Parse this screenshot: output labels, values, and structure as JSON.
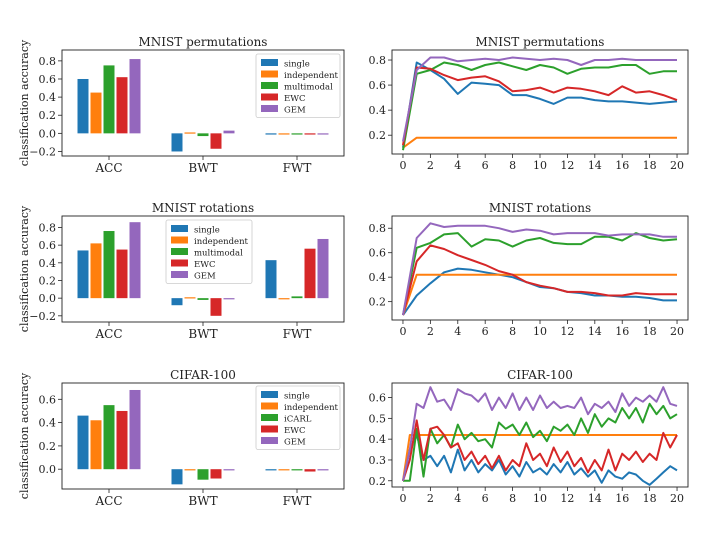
{
  "colors": {
    "single": "#1f77b4",
    "independent": "#ff7f0e",
    "multimodal": "#2ca02c",
    "EWC": "#d62728",
    "GEM": "#9467bd"
  },
  "ylabel_shared": "classification accuracy",
  "chart_data": [
    {
      "type": "bar",
      "title": "MNIST permutations",
      "ylabel": "classification accuracy",
      "categories": [
        "ACC",
        "BWT",
        "FWT"
      ],
      "series": [
        {
          "name": "single",
          "values": [
            0.6,
            -0.2,
            0.0
          ]
        },
        {
          "name": "independent",
          "values": [
            0.45,
            0.01,
            0.0
          ]
        },
        {
          "name": "multimodal",
          "values": [
            0.75,
            -0.03,
            0.0
          ]
        },
        {
          "name": "EWC",
          "values": [
            0.62,
            -0.17,
            0.0
          ]
        },
        {
          "name": "GEM",
          "values": [
            0.82,
            0.03,
            0.0
          ]
        }
      ],
      "ylim": [
        -0.25,
        0.92
      ],
      "yticks": [
        -0.2,
        0.0,
        0.2,
        0.4,
        0.6,
        0.8
      ],
      "ytick_labels": [
        "−0.2",
        "0.0",
        "0.2",
        "0.4",
        "0.6",
        "0.8"
      ],
      "legend": "top-right"
    },
    {
      "type": "line",
      "title": "MNIST permutations",
      "x": [
        0,
        1,
        2,
        3,
        4,
        5,
        6,
        7,
        8,
        9,
        10,
        11,
        12,
        13,
        14,
        15,
        16,
        17,
        18,
        19,
        20
      ],
      "series": [
        {
          "name": "single",
          "values": [
            0.1,
            0.78,
            0.72,
            0.65,
            0.53,
            0.62,
            0.61,
            0.6,
            0.52,
            0.52,
            0.49,
            0.45,
            0.5,
            0.5,
            0.48,
            0.47,
            0.47,
            0.46,
            0.45,
            0.46,
            0.47
          ]
        },
        {
          "name": "independent",
          "values": [
            0.1,
            0.18,
            0.18,
            0.18,
            0.18,
            0.18,
            0.18,
            0.18,
            0.18,
            0.18,
            0.18,
            0.18,
            0.18,
            0.18,
            0.18,
            0.18,
            0.18,
            0.18,
            0.18,
            0.18,
            0.18
          ]
        },
        {
          "name": "multimodal",
          "values": [
            0.08,
            0.69,
            0.72,
            0.78,
            0.76,
            0.72,
            0.76,
            0.78,
            0.75,
            0.72,
            0.76,
            0.74,
            0.69,
            0.73,
            0.74,
            0.74,
            0.76,
            0.76,
            0.69,
            0.71,
            0.71
          ]
        },
        {
          "name": "EWC",
          "values": [
            0.12,
            0.74,
            0.73,
            0.68,
            0.64,
            0.66,
            0.67,
            0.63,
            0.55,
            0.56,
            0.58,
            0.54,
            0.58,
            0.57,
            0.55,
            0.52,
            0.59,
            0.54,
            0.55,
            0.52,
            0.48
          ]
        },
        {
          "name": "GEM",
          "values": [
            0.15,
            0.72,
            0.82,
            0.82,
            0.79,
            0.8,
            0.81,
            0.8,
            0.82,
            0.81,
            0.8,
            0.81,
            0.8,
            0.76,
            0.8,
            0.8,
            0.81,
            0.8,
            0.8,
            0.8,
            0.8
          ]
        }
      ],
      "ylim": [
        0.05,
        0.88
      ],
      "yticks": [
        0.2,
        0.4,
        0.6,
        0.8
      ],
      "ytick_labels": [
        "0.2",
        "0.4",
        "0.6",
        "0.8"
      ],
      "xticks": [
        0,
        2,
        4,
        6,
        8,
        10,
        12,
        14,
        16,
        18,
        20
      ]
    },
    {
      "type": "bar",
      "title": "MNIST rotations",
      "ylabel": "classification accuracy",
      "categories": [
        "ACC",
        "BWT",
        "FWT"
      ],
      "series": [
        {
          "name": "single",
          "values": [
            0.54,
            -0.08,
            0.43
          ]
        },
        {
          "name": "independent",
          "values": [
            0.62,
            0.01,
            0.0
          ]
        },
        {
          "name": "multimodal",
          "values": [
            0.76,
            -0.02,
            0.02
          ]
        },
        {
          "name": "EWC",
          "values": [
            0.55,
            -0.2,
            0.56
          ]
        },
        {
          "name": "GEM",
          "values": [
            0.86,
            0.0,
            0.67
          ]
        }
      ],
      "ylim": [
        -0.27,
        0.93
      ],
      "yticks": [
        -0.2,
        0.0,
        0.2,
        0.4,
        0.6,
        0.8
      ],
      "ytick_labels": [
        "−0.2",
        "0.0",
        "0.2",
        "0.4",
        "0.6",
        "0.8"
      ],
      "legend": "top-center"
    },
    {
      "type": "line",
      "title": "MNIST rotations",
      "x": [
        0,
        1,
        2,
        3,
        4,
        5,
        6,
        7,
        8,
        9,
        10,
        11,
        12,
        13,
        14,
        15,
        16,
        17,
        18,
        19,
        20
      ],
      "series": [
        {
          "name": "single",
          "values": [
            0.09,
            0.25,
            0.35,
            0.44,
            0.47,
            0.46,
            0.44,
            0.42,
            0.4,
            0.36,
            0.32,
            0.31,
            0.28,
            0.27,
            0.25,
            0.25,
            0.24,
            0.24,
            0.23,
            0.21,
            0.21
          ]
        },
        {
          "name": "independent",
          "values": [
            0.09,
            0.42,
            0.42,
            0.42,
            0.42,
            0.42,
            0.42,
            0.42,
            0.42,
            0.42,
            0.42,
            0.42,
            0.42,
            0.42,
            0.42,
            0.42,
            0.42,
            0.42,
            0.42,
            0.42,
            0.42
          ]
        },
        {
          "name": "multimodal",
          "values": [
            0.09,
            0.64,
            0.68,
            0.75,
            0.76,
            0.65,
            0.71,
            0.7,
            0.65,
            0.7,
            0.72,
            0.68,
            0.67,
            0.67,
            0.73,
            0.73,
            0.7,
            0.76,
            0.72,
            0.7,
            0.71
          ]
        },
        {
          "name": "EWC",
          "values": [
            0.09,
            0.53,
            0.66,
            0.63,
            0.58,
            0.54,
            0.5,
            0.45,
            0.42,
            0.36,
            0.33,
            0.31,
            0.28,
            0.28,
            0.27,
            0.25,
            0.25,
            0.27,
            0.26,
            0.26,
            0.26
          ]
        },
        {
          "name": "GEM",
          "values": [
            0.09,
            0.72,
            0.84,
            0.81,
            0.82,
            0.82,
            0.82,
            0.8,
            0.77,
            0.79,
            0.78,
            0.75,
            0.76,
            0.76,
            0.76,
            0.74,
            0.75,
            0.75,
            0.75,
            0.73,
            0.73
          ]
        }
      ],
      "ylim": [
        0.05,
        0.9
      ],
      "yticks": [
        0.2,
        0.4,
        0.6,
        0.8
      ],
      "ytick_labels": [
        "0.2",
        "0.4",
        "0.6",
        "0.8"
      ],
      "xticks": [
        0,
        2,
        4,
        6,
        8,
        10,
        12,
        14,
        16,
        18,
        20
      ]
    },
    {
      "type": "bar",
      "title": "CIFAR-100",
      "ylabel": "classification accuracy",
      "categories": [
        "ACC",
        "BWT",
        "FWT"
      ],
      "series": [
        {
          "name": "single",
          "values": [
            0.46,
            -0.13,
            0.0
          ]
        },
        {
          "name": "independent",
          "values": [
            0.42,
            0.0,
            0.0
          ]
        },
        {
          "name": "iCARL",
          "values": [
            0.55,
            -0.09,
            0.0
          ]
        },
        {
          "name": "EWC",
          "values": [
            0.5,
            -0.08,
            -0.02
          ]
        },
        {
          "name": "GEM",
          "values": [
            0.68,
            0.0,
            0.0
          ]
        }
      ],
      "ylim": [
        -0.17,
        0.74
      ],
      "yticks": [
        0.0,
        0.2,
        0.4,
        0.6
      ],
      "ytick_labels": [
        "0.0",
        "0.2",
        "0.4",
        "0.6"
      ],
      "legend": "top-right"
    },
    {
      "type": "line",
      "title": "CIFAR-100",
      "x": [
        0,
        0.5,
        1,
        1.5,
        2,
        2.5,
        3,
        3.5,
        4,
        4.5,
        5,
        5.5,
        6,
        6.5,
        7,
        7.5,
        8,
        8.5,
        9,
        9.5,
        10,
        10.5,
        11,
        11.5,
        12,
        12.5,
        13,
        13.5,
        14,
        14.5,
        15,
        15.5,
        16,
        16.5,
        17,
        17.5,
        18,
        18.5,
        19,
        19.5,
        20
      ],
      "series": [
        {
          "name": "single",
          "values": [
            0.2,
            0.35,
            0.42,
            0.3,
            0.32,
            0.27,
            0.32,
            0.24,
            0.35,
            0.25,
            0.3,
            0.24,
            0.28,
            0.25,
            0.3,
            0.23,
            0.27,
            0.22,
            0.29,
            0.24,
            0.26,
            0.23,
            0.28,
            0.24,
            0.29,
            0.23,
            0.26,
            0.22,
            0.25,
            0.19,
            0.25,
            0.22,
            0.21,
            0.24,
            0.23,
            0.2,
            0.18,
            0.21,
            0.24,
            0.27,
            0.25
          ]
        },
        {
          "name": "independent",
          "values": [
            0.2,
            0.42,
            0.42,
            0.42,
            0.42,
            0.42,
            0.42,
            0.42,
            0.42,
            0.42,
            0.42,
            0.42,
            0.42,
            0.42,
            0.42,
            0.42,
            0.42,
            0.42,
            0.42,
            0.42,
            0.42,
            0.42,
            0.42,
            0.42,
            0.42,
            0.42,
            0.42,
            0.42,
            0.42,
            0.42,
            0.42,
            0.42,
            0.42,
            0.42,
            0.42,
            0.42,
            0.42,
            0.42,
            0.42,
            0.42,
            0.42
          ]
        },
        {
          "name": "iCARL",
          "values": [
            0.2,
            0.2,
            0.45,
            0.22,
            0.45,
            0.38,
            0.42,
            0.36,
            0.47,
            0.4,
            0.43,
            0.39,
            0.4,
            0.36,
            0.48,
            0.45,
            0.47,
            0.42,
            0.48,
            0.41,
            0.44,
            0.39,
            0.46,
            0.44,
            0.47,
            0.42,
            0.5,
            0.43,
            0.52,
            0.46,
            0.5,
            0.48,
            0.55,
            0.5,
            0.55,
            0.48,
            0.57,
            0.52,
            0.56,
            0.5,
            0.52
          ]
        },
        {
          "name": "EWC",
          "values": [
            0.2,
            0.3,
            0.49,
            0.3,
            0.45,
            0.46,
            0.42,
            0.36,
            0.38,
            0.3,
            0.34,
            0.28,
            0.32,
            0.26,
            0.32,
            0.25,
            0.3,
            0.27,
            0.38,
            0.3,
            0.33,
            0.27,
            0.36,
            0.29,
            0.34,
            0.27,
            0.31,
            0.24,
            0.3,
            0.25,
            0.35,
            0.25,
            0.33,
            0.3,
            0.34,
            0.29,
            0.33,
            0.3,
            0.43,
            0.36,
            0.42
          ]
        },
        {
          "name": "GEM",
          "values": [
            0.2,
            0.35,
            0.57,
            0.55,
            0.65,
            0.58,
            0.59,
            0.54,
            0.64,
            0.62,
            0.61,
            0.58,
            0.62,
            0.54,
            0.6,
            0.55,
            0.62,
            0.54,
            0.6,
            0.54,
            0.61,
            0.55,
            0.58,
            0.55,
            0.56,
            0.55,
            0.6,
            0.52,
            0.57,
            0.55,
            0.58,
            0.53,
            0.62,
            0.56,
            0.6,
            0.58,
            0.61,
            0.58,
            0.65,
            0.57,
            0.56
          ]
        }
      ],
      "ylim": [
        0.17,
        0.67
      ],
      "yticks": [
        0.2,
        0.3,
        0.4,
        0.5,
        0.6
      ],
      "ytick_labels": [
        "0.2",
        "0.3",
        "0.4",
        "0.5",
        "0.6"
      ],
      "xticks": [
        0,
        2,
        4,
        6,
        8,
        10,
        12,
        14,
        16,
        18,
        20
      ]
    }
  ]
}
